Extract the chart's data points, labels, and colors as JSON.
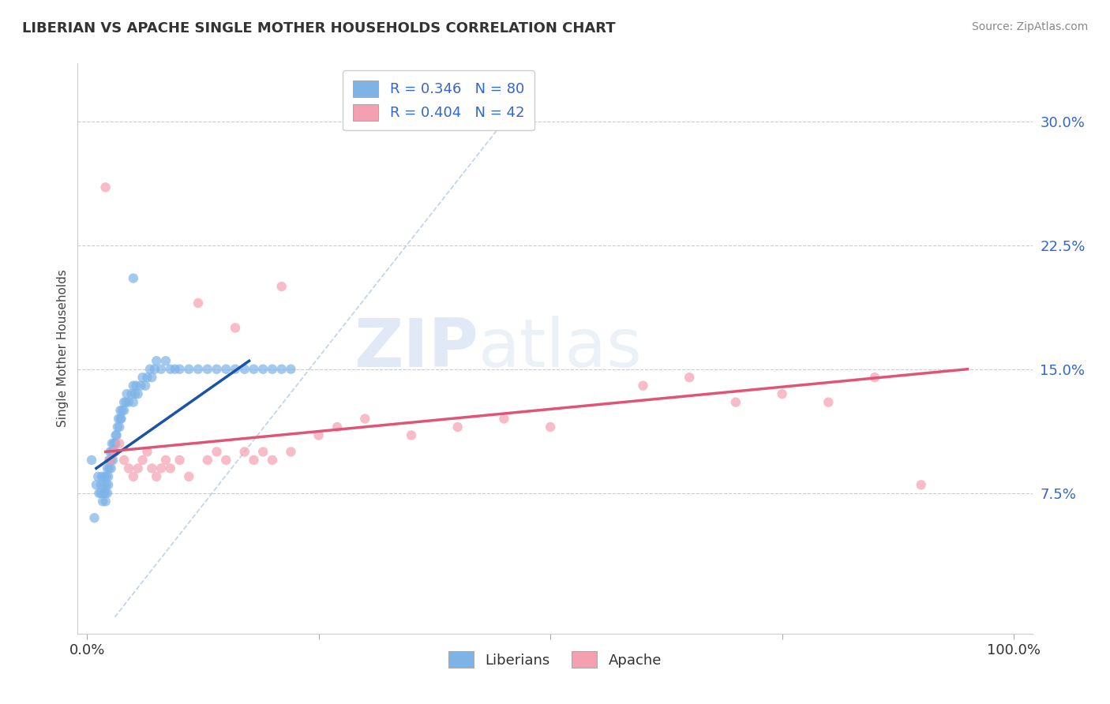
{
  "title": "LIBERIAN VS APACHE SINGLE MOTHER HOUSEHOLDS CORRELATION CHART",
  "source": "Source: ZipAtlas.com",
  "ylabel": "Single Mother Households",
  "blue_color": "#7EB3E8",
  "pink_color": "#F4A0B0",
  "trend_blue": "#1A52A8",
  "trend_pink": "#E05575",
  "diagonal_color": "#B0C8E0",
  "label_color": "#3366CC",
  "legend_r1_pre": "R = ",
  "legend_r1_r": "0.346",
  "legend_r1_mid": "   N = ",
  "legend_r1_n": "80",
  "legend_r2_pre": "R = ",
  "legend_r2_r": "0.404",
  "legend_r2_mid": "   N = ",
  "legend_r2_n": "42",
  "liberian_x": [
    0.005,
    0.008,
    0.01,
    0.012,
    0.013,
    0.015,
    0.015,
    0.016,
    0.017,
    0.018,
    0.018,
    0.019,
    0.02,
    0.02,
    0.021,
    0.021,
    0.022,
    0.022,
    0.023,
    0.023,
    0.024,
    0.024,
    0.025,
    0.025,
    0.026,
    0.026,
    0.027,
    0.027,
    0.028,
    0.028,
    0.029,
    0.03,
    0.03,
    0.031,
    0.031,
    0.032,
    0.033,
    0.034,
    0.035,
    0.036,
    0.036,
    0.037,
    0.038,
    0.04,
    0.04,
    0.042,
    0.043,
    0.045,
    0.048,
    0.05,
    0.05,
    0.052,
    0.053,
    0.055,
    0.058,
    0.06,
    0.063,
    0.065,
    0.068,
    0.07,
    0.073,
    0.075,
    0.08,
    0.085,
    0.09,
    0.095,
    0.1,
    0.11,
    0.12,
    0.13,
    0.14,
    0.15,
    0.16,
    0.17,
    0.18,
    0.19,
    0.2,
    0.21,
    0.22,
    0.05
  ],
  "liberian_y": [
    0.095,
    0.06,
    0.08,
    0.085,
    0.075,
    0.075,
    0.08,
    0.085,
    0.07,
    0.075,
    0.08,
    0.085,
    0.07,
    0.075,
    0.08,
    0.085,
    0.09,
    0.075,
    0.08,
    0.085,
    0.09,
    0.095,
    0.095,
    0.1,
    0.09,
    0.095,
    0.1,
    0.105,
    0.095,
    0.1,
    0.105,
    0.1,
    0.105,
    0.11,
    0.105,
    0.11,
    0.115,
    0.12,
    0.115,
    0.12,
    0.125,
    0.12,
    0.125,
    0.13,
    0.125,
    0.13,
    0.135,
    0.13,
    0.135,
    0.14,
    0.13,
    0.135,
    0.14,
    0.135,
    0.14,
    0.145,
    0.14,
    0.145,
    0.15,
    0.145,
    0.15,
    0.155,
    0.15,
    0.155,
    0.15,
    0.15,
    0.15,
    0.15,
    0.15,
    0.15,
    0.15,
    0.15,
    0.15,
    0.15,
    0.15,
    0.15,
    0.15,
    0.15,
    0.15,
    0.205
  ],
  "apache_x": [
    0.02,
    0.025,
    0.03,
    0.035,
    0.04,
    0.045,
    0.05,
    0.055,
    0.06,
    0.065,
    0.07,
    0.075,
    0.08,
    0.085,
    0.09,
    0.1,
    0.11,
    0.12,
    0.13,
    0.14,
    0.15,
    0.16,
    0.17,
    0.18,
    0.19,
    0.2,
    0.21,
    0.22,
    0.25,
    0.27,
    0.3,
    0.35,
    0.4,
    0.45,
    0.5,
    0.6,
    0.65,
    0.7,
    0.75,
    0.8,
    0.85,
    0.9
  ],
  "apache_y": [
    0.26,
    0.095,
    0.1,
    0.105,
    0.095,
    0.09,
    0.085,
    0.09,
    0.095,
    0.1,
    0.09,
    0.085,
    0.09,
    0.095,
    0.09,
    0.095,
    0.085,
    0.19,
    0.095,
    0.1,
    0.095,
    0.175,
    0.1,
    0.095,
    0.1,
    0.095,
    0.2,
    0.1,
    0.11,
    0.115,
    0.12,
    0.11,
    0.115,
    0.12,
    0.115,
    0.14,
    0.145,
    0.13,
    0.135,
    0.13,
    0.145,
    0.08
  ],
  "xlim": [
    -0.01,
    1.02
  ],
  "ylim": [
    -0.01,
    0.335
  ],
  "ytick_vals": [
    0.075,
    0.15,
    0.225,
    0.3
  ],
  "ytick_labels": [
    "7.5%",
    "15.0%",
    "22.5%",
    "30.0%"
  ],
  "xtick_vals": [
    0.0,
    0.25,
    0.5,
    0.75,
    1.0
  ],
  "xtick_labels": [
    "0.0%",
    "",
    "",
    "",
    "100.0%"
  ]
}
